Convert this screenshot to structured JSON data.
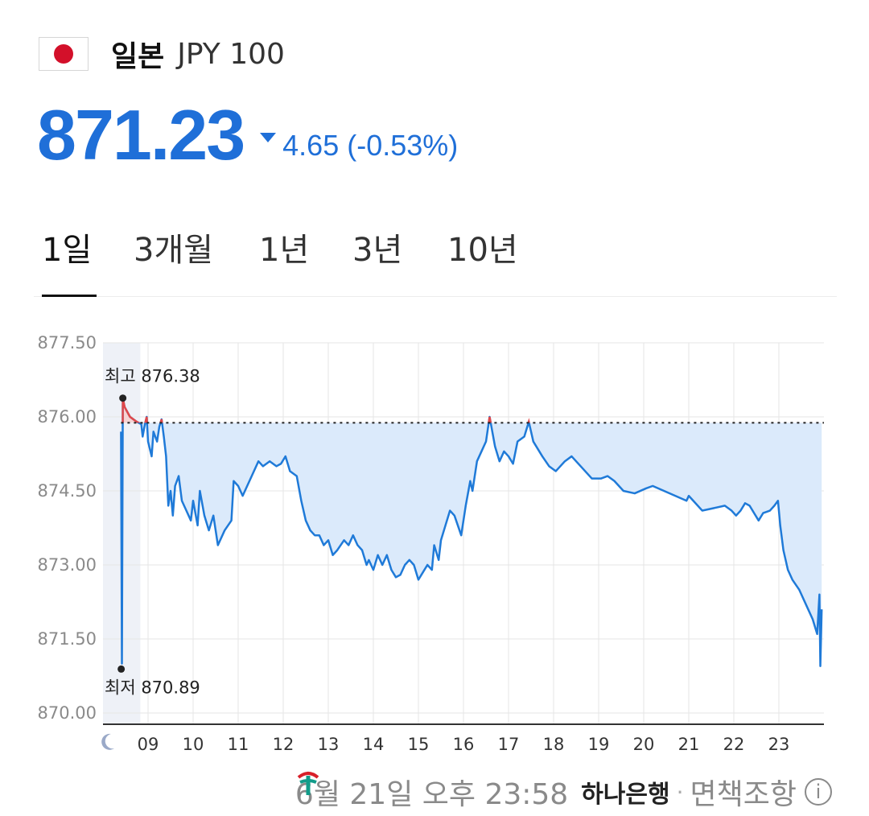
{
  "header": {
    "country": "일본",
    "code": "JPY 100",
    "flag_icon": "japan-flag-icon"
  },
  "quote": {
    "price": "871.23",
    "change": "4.65 (-0.53%)",
    "direction": "down",
    "color": "#1f6fd8"
  },
  "tabs": [
    {
      "label": "1일",
      "active": true
    },
    {
      "label": "3개월",
      "active": false
    },
    {
      "label": "1년",
      "active": false
    },
    {
      "label": "3년",
      "active": false
    },
    {
      "label": "10년",
      "active": false
    }
  ],
  "chart_data": {
    "type": "area",
    "y_ticks": [
      "877.50",
      "876.00",
      "874.50",
      "873.00",
      "871.50",
      "870.00"
    ],
    "ylim": [
      870.0,
      877.5
    ],
    "x_ticks": [
      "09",
      "10",
      "11",
      "12",
      "13",
      "14",
      "15",
      "16",
      "17",
      "18",
      "19",
      "20",
      "21",
      "22",
      "23"
    ],
    "xlim": [
      8.0,
      24.0
    ],
    "reference_value": 875.88,
    "high": {
      "label": "최고 876.38",
      "value": 876.38
    },
    "low": {
      "label": "최저 870.89",
      "value": 870.89
    },
    "night_icon": "moon-icon",
    "grid": true,
    "line_color": "#1f7ad8",
    "fill_color": "#dbeafb",
    "up_color": "#e0484a",
    "series": [
      {
        "points": [
          [
            8.4,
            875.7
          ],
          [
            8.42,
            871.0
          ],
          [
            8.44,
            876.38
          ],
          [
            8.48,
            876.2
          ],
          [
            8.6,
            876.0
          ],
          [
            8.75,
            875.9
          ],
          [
            8.85,
            875.85
          ],
          [
            8.88,
            875.6
          ],
          [
            8.93,
            875.85
          ],
          [
            8.97,
            876.0
          ],
          [
            9.0,
            875.5
          ],
          [
            9.08,
            875.2
          ],
          [
            9.12,
            875.7
          ],
          [
            9.2,
            875.5
          ],
          [
            9.25,
            875.8
          ],
          [
            9.3,
            875.95
          ],
          [
            9.35,
            875.6
          ],
          [
            9.4,
            875.2
          ],
          [
            9.45,
            874.2
          ],
          [
            9.5,
            874.5
          ],
          [
            9.55,
            874.0
          ],
          [
            9.6,
            874.6
          ],
          [
            9.68,
            874.8
          ],
          [
            9.75,
            874.3
          ],
          [
            9.85,
            874.1
          ],
          [
            9.95,
            873.9
          ],
          [
            10.0,
            874.3
          ],
          [
            10.1,
            873.8
          ],
          [
            10.15,
            874.5
          ],
          [
            10.25,
            874.0
          ],
          [
            10.35,
            873.7
          ],
          [
            10.45,
            874.0
          ],
          [
            10.55,
            873.4
          ],
          [
            10.7,
            873.7
          ],
          [
            10.85,
            873.9
          ],
          [
            10.9,
            874.7
          ],
          [
            11.0,
            874.6
          ],
          [
            11.1,
            874.4
          ],
          [
            11.2,
            874.6
          ],
          [
            11.3,
            874.8
          ],
          [
            11.45,
            875.1
          ],
          [
            11.55,
            875.0
          ],
          [
            11.7,
            875.1
          ],
          [
            11.85,
            875.0
          ],
          [
            11.95,
            875.05
          ],
          [
            12.05,
            875.2
          ],
          [
            12.15,
            874.9
          ],
          [
            12.3,
            874.8
          ],
          [
            12.4,
            874.3
          ],
          [
            12.5,
            873.9
          ],
          [
            12.6,
            873.7
          ],
          [
            12.7,
            873.6
          ],
          [
            12.8,
            873.6
          ],
          [
            12.9,
            873.4
          ],
          [
            13.0,
            873.5
          ],
          [
            13.1,
            873.2
          ],
          [
            13.2,
            873.3
          ],
          [
            13.35,
            873.5
          ],
          [
            13.45,
            873.4
          ],
          [
            13.55,
            873.6
          ],
          [
            13.65,
            873.4
          ],
          [
            13.75,
            873.3
          ],
          [
            13.85,
            873.0
          ],
          [
            13.9,
            873.1
          ],
          [
            14.0,
            872.9
          ],
          [
            14.1,
            873.2
          ],
          [
            14.2,
            873.0
          ],
          [
            14.3,
            873.2
          ],
          [
            14.4,
            872.9
          ],
          [
            14.5,
            872.75
          ],
          [
            14.6,
            872.8
          ],
          [
            14.7,
            873.0
          ],
          [
            14.8,
            873.1
          ],
          [
            14.9,
            873.0
          ],
          [
            15.0,
            872.7
          ],
          [
            15.1,
            872.85
          ],
          [
            15.2,
            873.0
          ],
          [
            15.3,
            872.9
          ],
          [
            15.35,
            873.4
          ],
          [
            15.45,
            873.1
          ],
          [
            15.5,
            873.5
          ],
          [
            15.6,
            873.8
          ],
          [
            15.7,
            874.1
          ],
          [
            15.8,
            874.0
          ],
          [
            15.95,
            873.6
          ],
          [
            16.05,
            874.2
          ],
          [
            16.15,
            874.7
          ],
          [
            16.2,
            874.5
          ],
          [
            16.3,
            875.1
          ],
          [
            16.4,
            875.3
          ],
          [
            16.5,
            875.5
          ],
          [
            16.58,
            876.0
          ],
          [
            16.6,
            875.9
          ],
          [
            16.7,
            875.4
          ],
          [
            16.8,
            875.1
          ],
          [
            16.9,
            875.3
          ],
          [
            17.0,
            875.2
          ],
          [
            17.1,
            875.05
          ],
          [
            17.2,
            875.5
          ],
          [
            17.35,
            875.6
          ],
          [
            17.45,
            875.9
          ],
          [
            17.55,
            875.5
          ],
          [
            17.75,
            875.2
          ],
          [
            17.9,
            875.0
          ],
          [
            18.05,
            874.9
          ],
          [
            18.25,
            875.1
          ],
          [
            18.4,
            875.2
          ],
          [
            18.6,
            875.0
          ],
          [
            18.85,
            874.75
          ],
          [
            19.05,
            874.75
          ],
          [
            19.2,
            874.8
          ],
          [
            19.35,
            874.7
          ],
          [
            19.55,
            874.5
          ],
          [
            19.8,
            874.45
          ],
          [
            20.05,
            874.55
          ],
          [
            20.2,
            874.6
          ],
          [
            20.45,
            874.5
          ],
          [
            20.7,
            874.4
          ],
          [
            20.95,
            874.3
          ],
          [
            21.0,
            874.4
          ],
          [
            21.1,
            874.3
          ],
          [
            21.3,
            874.1
          ],
          [
            21.55,
            874.15
          ],
          [
            21.8,
            874.2
          ],
          [
            21.95,
            874.1
          ],
          [
            22.05,
            874.0
          ],
          [
            22.15,
            874.1
          ],
          [
            22.25,
            874.25
          ],
          [
            22.35,
            874.2
          ],
          [
            22.45,
            874.05
          ],
          [
            22.55,
            873.9
          ],
          [
            22.65,
            874.05
          ],
          [
            22.8,
            874.1
          ],
          [
            22.9,
            874.2
          ],
          [
            22.98,
            874.3
          ],
          [
            23.03,
            873.8
          ],
          [
            23.1,
            873.3
          ],
          [
            23.2,
            872.9
          ],
          [
            23.3,
            872.7
          ],
          [
            23.45,
            872.5
          ],
          [
            23.6,
            872.2
          ],
          [
            23.75,
            871.9
          ],
          [
            23.85,
            871.6
          ],
          [
            23.9,
            872.4
          ],
          [
            23.92,
            870.95
          ],
          [
            23.95,
            872.1
          ]
        ]
      }
    ]
  },
  "footer": {
    "timestamp": "6월 21일 오후 23:58",
    "bank": "하나은행",
    "separator": "·",
    "disclaimer": "면책조항",
    "info_icon": "i"
  }
}
